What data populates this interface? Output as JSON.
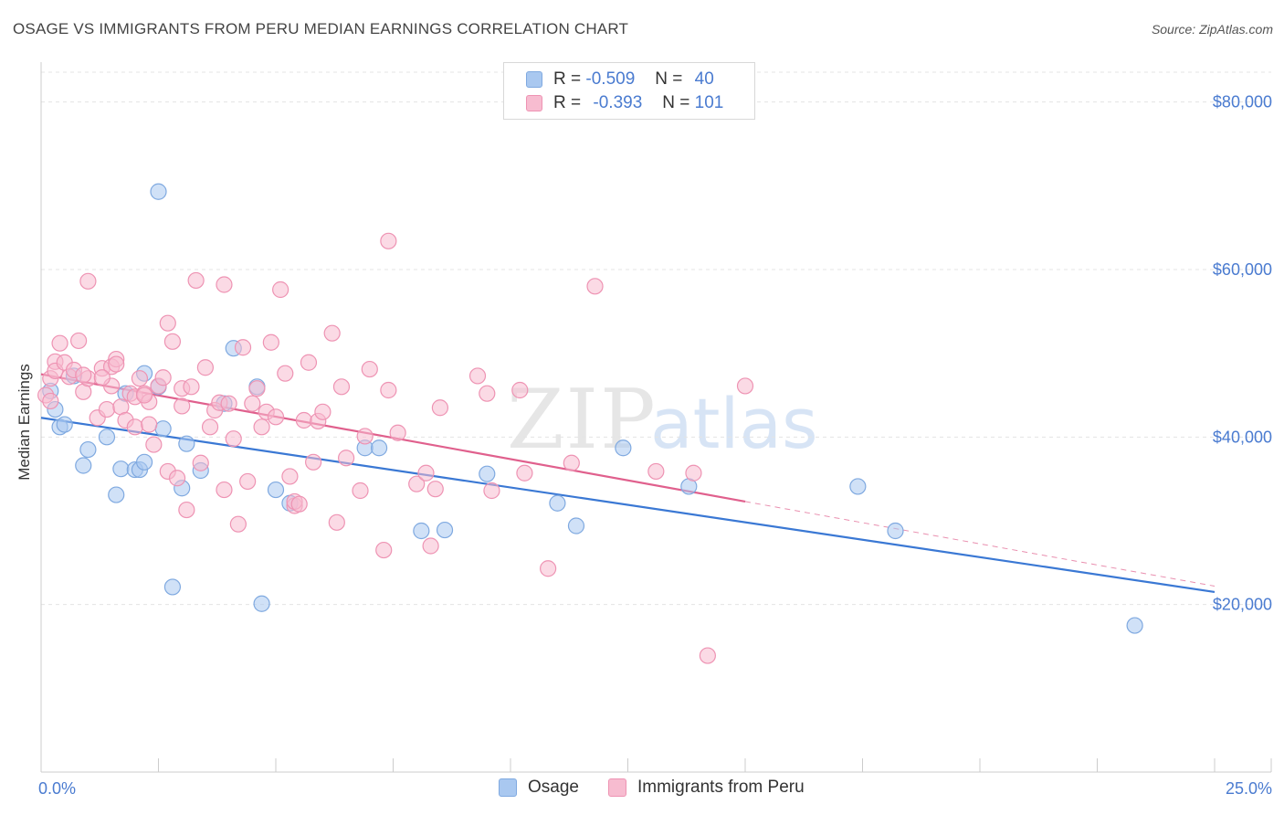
{
  "title": "OSAGE VS IMMIGRANTS FROM PERU MEDIAN EARNINGS CORRELATION CHART",
  "source": "Source: ZipAtlas.com",
  "watermark": {
    "zip": "ZIP",
    "atlas": "atlas"
  },
  "legend": {
    "rows": [
      {
        "r_label": "R =",
        "r_value": "-0.509",
        "n_label": "N =",
        "n_value": "40",
        "color": "#a9c8f0",
        "border": "#7fa9e0"
      },
      {
        "r_label": "R =",
        "r_value": "-0.393",
        "n_label": "N =",
        "n_value": "101",
        "color": "#f7bcd0",
        "border": "#ee93b3"
      }
    ]
  },
  "bottom_legend": [
    "Osage",
    "Immigrants from Peru"
  ],
  "chart_data": {
    "type": "scatter",
    "title": "OSAGE VS IMMIGRANTS FROM PERU MEDIAN EARNINGS CORRELATION CHART",
    "xlabel": "",
    "ylabel": "Median Earnings",
    "xlim": [
      0,
      25
    ],
    "ylim": [
      0,
      84000
    ],
    "x_tick_labels": [
      "0.0%",
      "25.0%"
    ],
    "y_ticks": [
      20000,
      40000,
      60000,
      80000
    ],
    "y_tick_labels": [
      "$20,000",
      "$40,000",
      "$60,000",
      "$80,000"
    ],
    "grid": true,
    "legend_position": "top-center",
    "series": [
      {
        "name": "Osage",
        "color": "#7fa9e0",
        "fill": "#a9c8f0",
        "trend": {
          "x": [
            0,
            25
          ],
          "y": [
            42300,
            21500
          ],
          "style": "solid",
          "color": "#3a78d4"
        },
        "points": [
          [
            0.2,
            45500
          ],
          [
            0.3,
            43300
          ],
          [
            0.4,
            41200
          ],
          [
            0.5,
            41500
          ],
          [
            0.7,
            47300
          ],
          [
            0.9,
            36600
          ],
          [
            1.0,
            38500
          ],
          [
            1.4,
            40000
          ],
          [
            1.6,
            33100
          ],
          [
            1.7,
            36200
          ],
          [
            1.8,
            45200
          ],
          [
            2.0,
            36100
          ],
          [
            2.1,
            36100
          ],
          [
            2.2,
            47600
          ],
          [
            2.2,
            37000
          ],
          [
            2.5,
            46000
          ],
          [
            2.5,
            69300
          ],
          [
            2.6,
            41000
          ],
          [
            2.8,
            22100
          ],
          [
            3.0,
            33900
          ],
          [
            3.1,
            39200
          ],
          [
            3.4,
            36000
          ],
          [
            3.9,
            44000
          ],
          [
            4.1,
            50600
          ],
          [
            4.6,
            46000
          ],
          [
            4.7,
            20100
          ],
          [
            5.0,
            33700
          ],
          [
            5.3,
            32100
          ],
          [
            6.9,
            38700
          ],
          [
            7.2,
            38700
          ],
          [
            8.1,
            28800
          ],
          [
            8.6,
            28900
          ],
          [
            9.5,
            35600
          ],
          [
            11.0,
            32100
          ],
          [
            11.4,
            29400
          ],
          [
            12.4,
            38700
          ],
          [
            13.8,
            34100
          ],
          [
            17.4,
            34100
          ],
          [
            18.2,
            28800
          ],
          [
            23.3,
            17500
          ]
        ]
      },
      {
        "name": "Immigrants from Peru",
        "color": "#ee93b3",
        "fill": "#f7bcd0",
        "trend": {
          "x": [
            0,
            15
          ],
          "y": [
            47500,
            32300
          ],
          "style": "solid",
          "color": "#e0608d",
          "extension": {
            "x": [
              15,
              25
            ],
            "y": [
              32300,
              22200
            ],
            "style": "dashed"
          }
        },
        "points": [
          [
            0.1,
            45000
          ],
          [
            0.2,
            47000
          ],
          [
            0.2,
            44300
          ],
          [
            0.3,
            49000
          ],
          [
            0.3,
            47900
          ],
          [
            0.4,
            51200
          ],
          [
            0.5,
            48900
          ],
          [
            0.6,
            47200
          ],
          [
            0.7,
            48000
          ],
          [
            0.8,
            51500
          ],
          [
            0.9,
            45400
          ],
          [
            1.0,
            47000
          ],
          [
            1.0,
            58600
          ],
          [
            1.2,
            42300
          ],
          [
            1.3,
            48200
          ],
          [
            1.4,
            43300
          ],
          [
            1.5,
            48400
          ],
          [
            1.5,
            46100
          ],
          [
            1.6,
            49300
          ],
          [
            1.6,
            48700
          ],
          [
            1.7,
            43600
          ],
          [
            1.8,
            42000
          ],
          [
            1.9,
            45200
          ],
          [
            2.0,
            41200
          ],
          [
            2.0,
            44800
          ],
          [
            2.1,
            47000
          ],
          [
            2.2,
            45200
          ],
          [
            2.3,
            44200
          ],
          [
            2.3,
            41500
          ],
          [
            2.4,
            39100
          ],
          [
            2.5,
            46100
          ],
          [
            2.6,
            47100
          ],
          [
            2.7,
            35900
          ],
          [
            2.7,
            53600
          ],
          [
            2.8,
            51400
          ],
          [
            2.9,
            35100
          ],
          [
            3.0,
            45800
          ],
          [
            3.0,
            43700
          ],
          [
            3.1,
            31300
          ],
          [
            3.2,
            46000
          ],
          [
            3.3,
            58700
          ],
          [
            3.4,
            36900
          ],
          [
            3.5,
            48300
          ],
          [
            3.6,
            41200
          ],
          [
            3.7,
            43200
          ],
          [
            3.8,
            44100
          ],
          [
            3.9,
            58200
          ],
          [
            3.9,
            33700
          ],
          [
            4.0,
            44000
          ],
          [
            4.1,
            39800
          ],
          [
            4.2,
            29600
          ],
          [
            4.3,
            50700
          ],
          [
            4.4,
            34700
          ],
          [
            4.5,
            44000
          ],
          [
            4.6,
            45800
          ],
          [
            4.7,
            41200
          ],
          [
            4.8,
            43000
          ],
          [
            4.9,
            51300
          ],
          [
            5.0,
            42400
          ],
          [
            5.1,
            57600
          ],
          [
            5.2,
            47600
          ],
          [
            5.3,
            35300
          ],
          [
            5.4,
            31800
          ],
          [
            5.4,
            32300
          ],
          [
            5.5,
            32000
          ],
          [
            5.6,
            42000
          ],
          [
            5.7,
            48900
          ],
          [
            5.8,
            37000
          ],
          [
            5.9,
            41900
          ],
          [
            6.0,
            43000
          ],
          [
            6.2,
            52400
          ],
          [
            6.3,
            29800
          ],
          [
            6.4,
            46000
          ],
          [
            6.5,
            37500
          ],
          [
            6.8,
            33600
          ],
          [
            6.9,
            40100
          ],
          [
            7.0,
            48100
          ],
          [
            7.3,
            26500
          ],
          [
            7.4,
            45600
          ],
          [
            7.6,
            40500
          ],
          [
            8.0,
            34400
          ],
          [
            8.2,
            35700
          ],
          [
            8.3,
            27000
          ],
          [
            8.4,
            33800
          ],
          [
            8.5,
            43500
          ],
          [
            9.3,
            47300
          ],
          [
            9.5,
            45200
          ],
          [
            9.6,
            33600
          ],
          [
            10.2,
            45600
          ],
          [
            10.3,
            35700
          ],
          [
            10.8,
            24300
          ],
          [
            11.3,
            36900
          ],
          [
            11.8,
            58000
          ],
          [
            13.1,
            35900
          ],
          [
            13.9,
            35700
          ],
          [
            14.2,
            13900
          ],
          [
            15.0,
            46100
          ],
          [
            7.4,
            63400
          ],
          [
            0.9,
            47400
          ],
          [
            1.3,
            47100
          ],
          [
            2.2,
            45000
          ]
        ]
      }
    ]
  }
}
